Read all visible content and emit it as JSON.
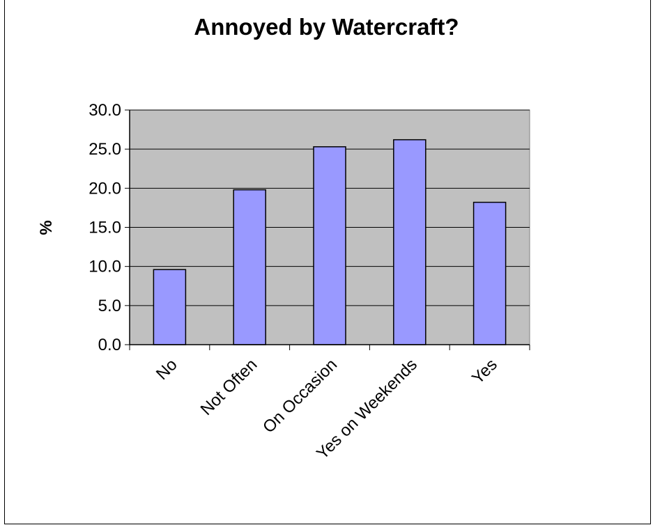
{
  "chart_data": {
    "type": "bar",
    "title": "Annoyed by Watercraft?",
    "xlabel": "",
    "ylabel": "%",
    "categories": [
      "No",
      "Not Often",
      "On Occasion",
      "Yes on Weekends",
      "Yes"
    ],
    "values": [
      9.6,
      19.8,
      25.3,
      26.2,
      18.2
    ],
    "ylim": [
      0,
      30
    ],
    "yticks": [
      "0.0",
      "5.0",
      "10.0",
      "15.0",
      "20.0",
      "25.0",
      "30.0"
    ],
    "grid": true,
    "legend": "none",
    "colors": {
      "bar_fill": "#9999ff",
      "plot_area": "#c0c0c0",
      "gridline": "#000000"
    }
  }
}
